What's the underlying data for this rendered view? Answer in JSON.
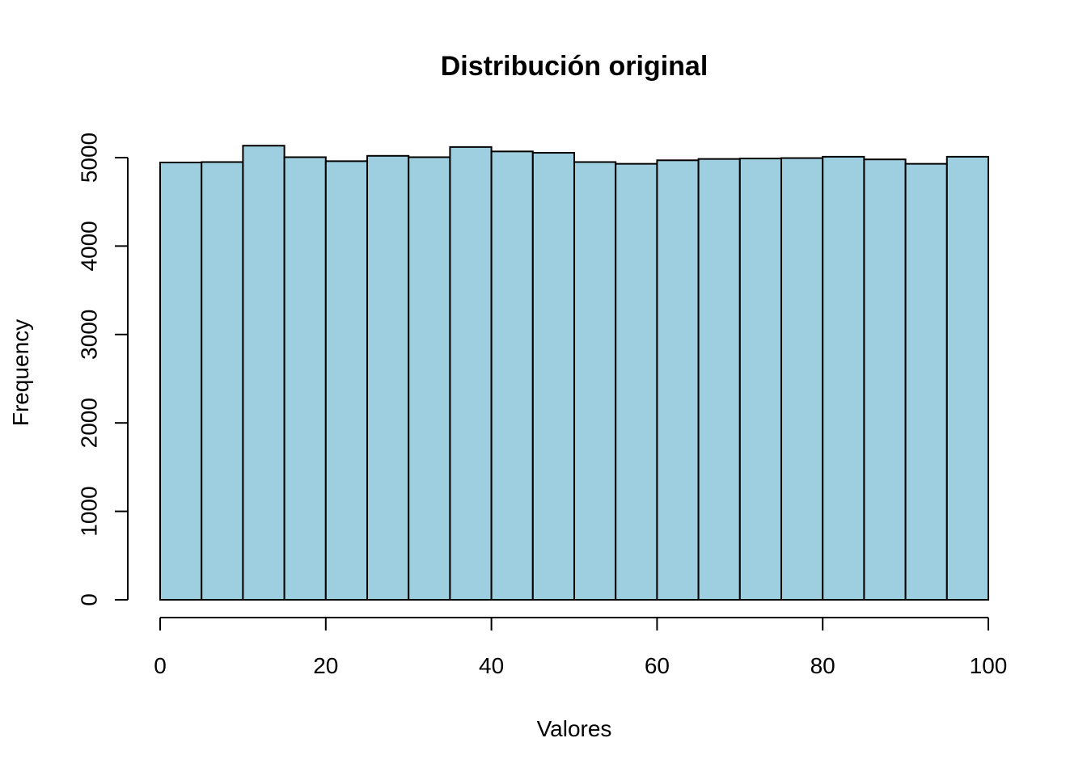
{
  "chart_data": {
    "type": "bar",
    "title": "Distribución original",
    "xlabel": "Valores",
    "ylabel": "Frequency",
    "bar_color": "#9ECFE0",
    "edge_color": "#000000",
    "bin_width": 5,
    "bin_starts": [
      0,
      5,
      10,
      15,
      20,
      25,
      30,
      35,
      40,
      45,
      50,
      55,
      60,
      65,
      70,
      75,
      80,
      85,
      90,
      95
    ],
    "values": [
      4945,
      4950,
      5135,
      5005,
      4960,
      5020,
      5005,
      5120,
      5070,
      5055,
      4950,
      4930,
      4970,
      4985,
      4990,
      4995,
      5010,
      4980,
      4930,
      5010
    ],
    "xlim": [
      0,
      100
    ],
    "ylim": [
      0,
      5000
    ],
    "x_ticks": [
      0,
      20,
      40,
      60,
      80,
      100
    ],
    "x_tick_labels": [
      "0",
      "20",
      "40",
      "60",
      "80",
      "100"
    ],
    "y_ticks": [
      0,
      1000,
      2000,
      3000,
      4000,
      5000
    ],
    "y_tick_labels": [
      "0",
      "1000",
      "2000",
      "3000",
      "4000",
      "5000"
    ],
    "grid": false,
    "legend": "none"
  }
}
